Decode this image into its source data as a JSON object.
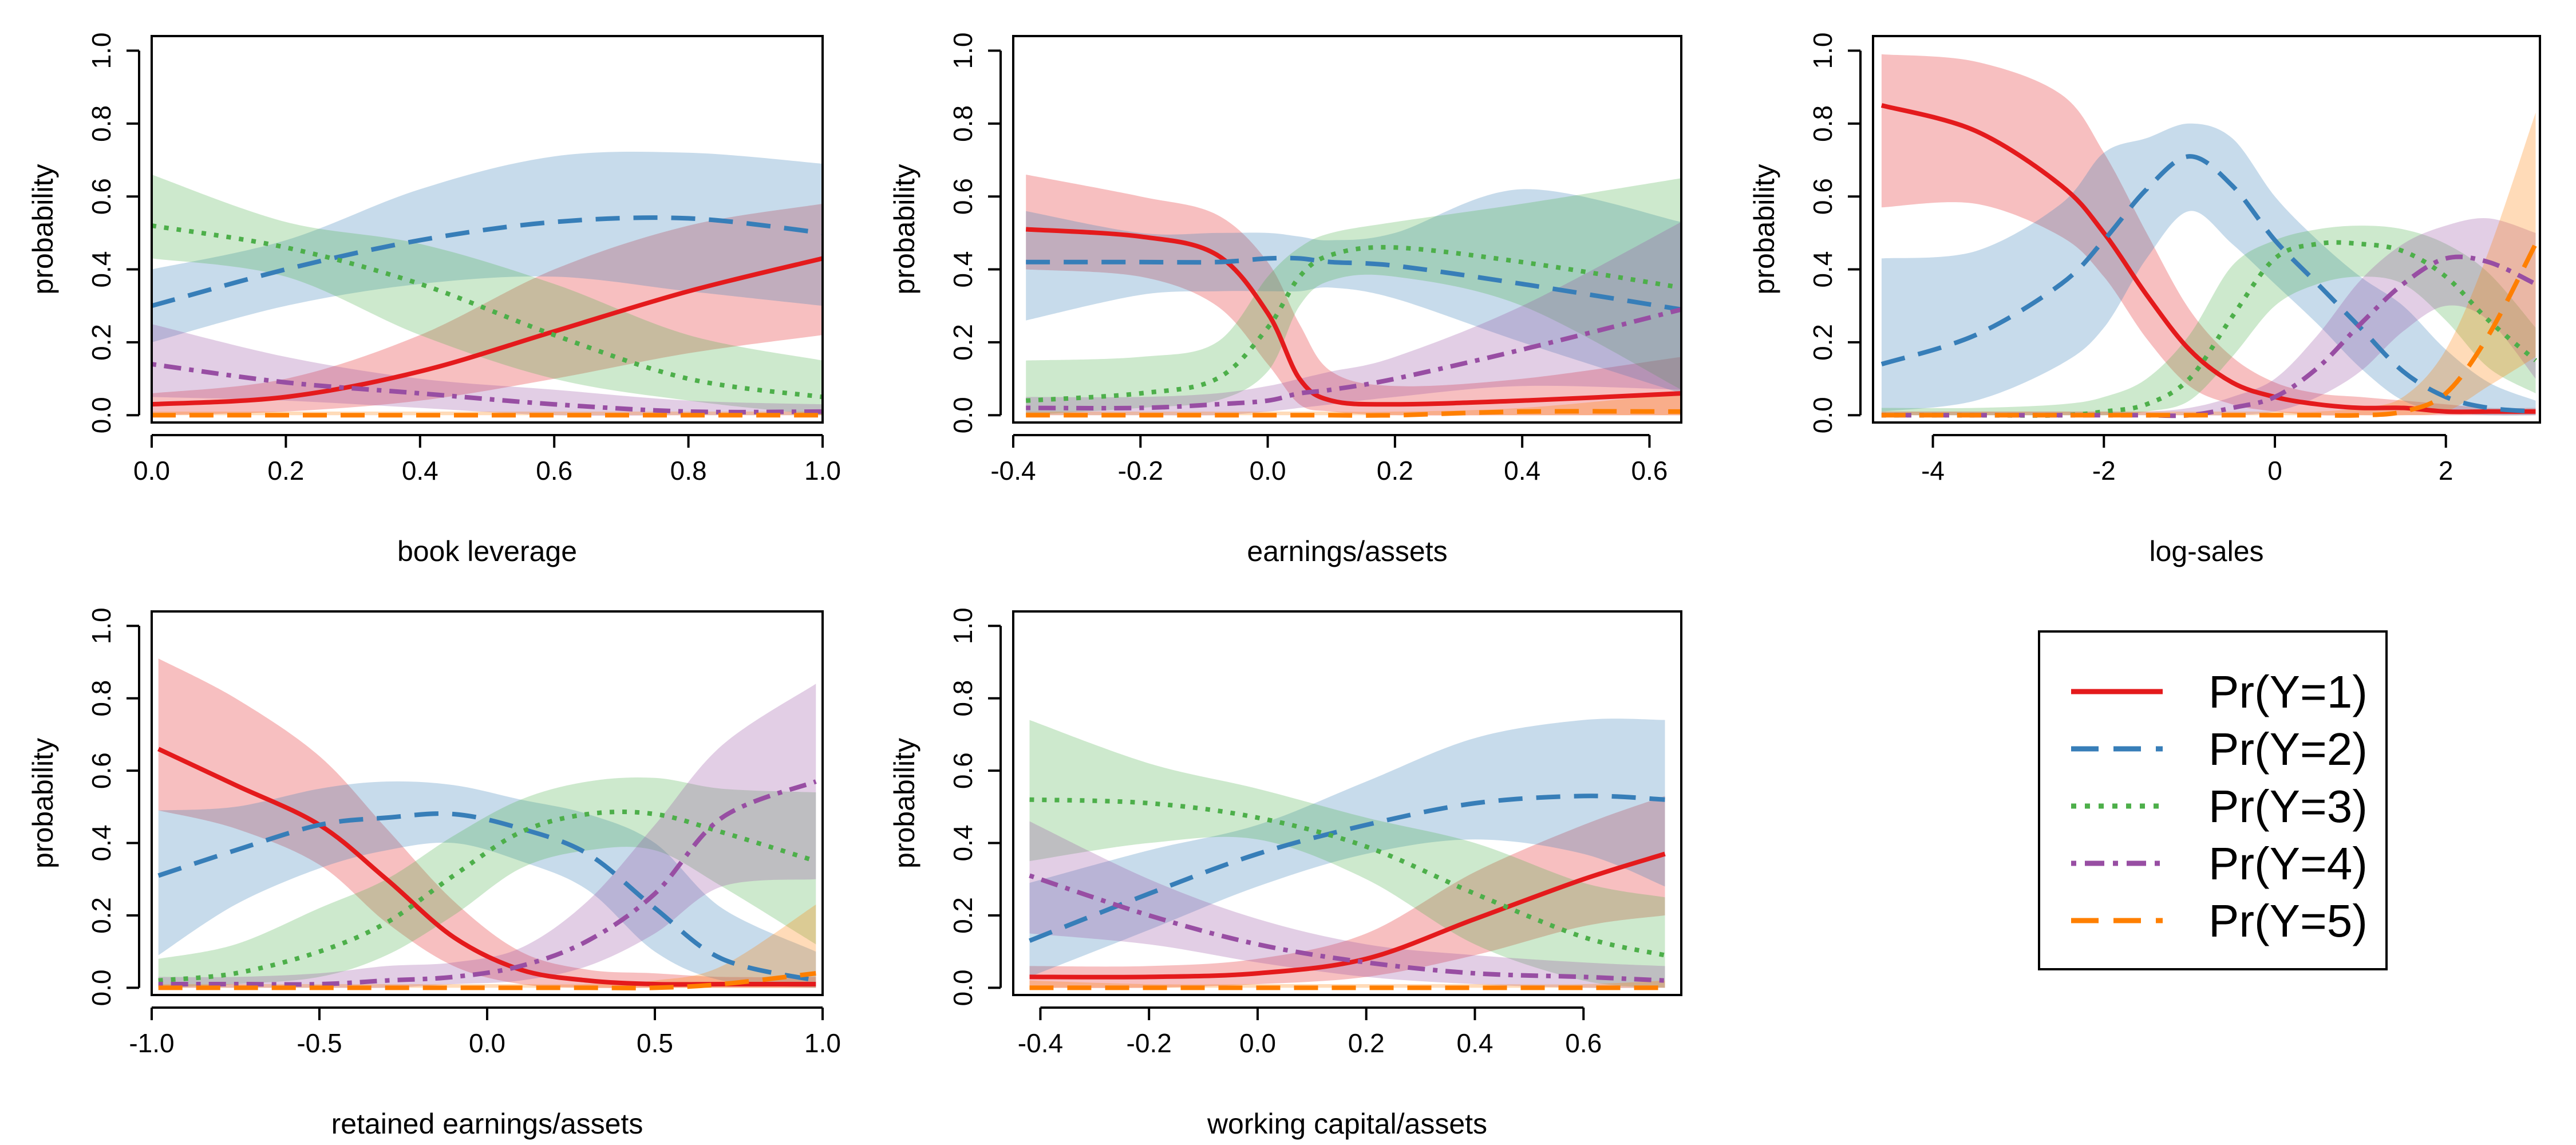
{
  "series_style": [
    {
      "name": "Pr(Y=1)",
      "color": "#E41A1C",
      "dash": "solid"
    },
    {
      "name": "Pr(Y=2)",
      "color": "#377EB8",
      "dash": "longdash"
    },
    {
      "name": "Pr(Y=3)",
      "color": "#4DAF4A",
      "dash": "dotted"
    },
    {
      "name": "Pr(Y=4)",
      "color": "#984EA3",
      "dash": "dotdash"
    },
    {
      "name": "Pr(Y=5)",
      "color": "#FF7F00",
      "dash": "longdash"
    }
  ],
  "legend": {
    "entries": [
      "Pr(Y=1)",
      "Pr(Y=2)",
      "Pr(Y=3)",
      "Pr(Y=4)",
      "Pr(Y=5)"
    ]
  },
  "chart_data": [
    {
      "type": "line",
      "xlabel": "book leverage",
      "ylabel": "probability",
      "xlim": [
        0.0,
        1.0
      ],
      "ylim": [
        0.0,
        1.0
      ],
      "xticks": [
        "0.0",
        "0.2",
        "0.4",
        "0.6",
        "0.8",
        "1.0"
      ],
      "yticks": [
        "0.0",
        "0.2",
        "0.4",
        "0.6",
        "0.8",
        "1.0"
      ],
      "x": [
        0.0,
        0.2,
        0.4,
        0.6,
        0.8,
        1.0
      ],
      "series": [
        {
          "name": "Pr(Y=1)",
          "values": [
            0.03,
            0.05,
            0.12,
            0.23,
            0.34,
            0.43
          ],
          "lower": [
            0.0,
            0.01,
            0.04,
            0.1,
            0.17,
            0.22
          ],
          "upper": [
            0.06,
            0.1,
            0.22,
            0.4,
            0.52,
            0.58
          ]
        },
        {
          "name": "Pr(Y=2)",
          "values": [
            0.3,
            0.4,
            0.48,
            0.53,
            0.54,
            0.5
          ],
          "lower": [
            0.2,
            0.3,
            0.36,
            0.38,
            0.34,
            0.3
          ],
          "upper": [
            0.4,
            0.48,
            0.62,
            0.71,
            0.72,
            0.69
          ]
        },
        {
          "name": "Pr(Y=3)",
          "values": [
            0.52,
            0.46,
            0.36,
            0.22,
            0.1,
            0.05
          ],
          "lower": [
            0.43,
            0.38,
            0.22,
            0.1,
            0.04,
            0.0
          ],
          "upper": [
            0.66,
            0.53,
            0.47,
            0.36,
            0.22,
            0.15
          ]
        },
        {
          "name": "Pr(Y=4)",
          "values": [
            0.14,
            0.09,
            0.06,
            0.03,
            0.01,
            0.01
          ],
          "lower": [
            0.05,
            0.04,
            0.02,
            0.0,
            0.0,
            0.0
          ],
          "upper": [
            0.25,
            0.16,
            0.1,
            0.07,
            0.04,
            0.03
          ]
        },
        {
          "name": "Pr(Y=5)",
          "values": [
            0.0,
            0.0,
            0.0,
            0.0,
            0.0,
            0.0
          ],
          "lower": [
            0.0,
            0.0,
            0.0,
            0.0,
            0.0,
            0.0
          ],
          "upper": [
            0.01,
            0.01,
            0.01,
            0.01,
            0.01,
            0.01
          ]
        }
      ]
    },
    {
      "type": "line",
      "xlabel": "earnings/assets",
      "ylabel": "probability",
      "xlim": [
        -0.4,
        0.65
      ],
      "ylim": [
        0.0,
        1.0
      ],
      "xticks": [
        "-0.4",
        "-0.2",
        "0.0",
        "0.2",
        "0.4",
        "0.6"
      ],
      "yticks": [
        "0.0",
        "0.2",
        "0.4",
        "0.6",
        "0.8",
        "1.0"
      ],
      "x": [
        -0.38,
        -0.2,
        -0.08,
        0.0,
        0.05,
        0.1,
        0.2,
        0.4,
        0.65
      ],
      "series": [
        {
          "name": "Pr(Y=1)",
          "values": [
            0.51,
            0.49,
            0.44,
            0.28,
            0.1,
            0.04,
            0.03,
            0.04,
            0.06
          ],
          "lower": [
            0.4,
            0.38,
            0.3,
            0.14,
            0.03,
            0.01,
            0.0,
            0.0,
            0.0
          ],
          "upper": [
            0.66,
            0.6,
            0.55,
            0.42,
            0.25,
            0.12,
            0.08,
            0.1,
            0.16
          ]
        },
        {
          "name": "Pr(Y=2)",
          "values": [
            0.42,
            0.42,
            0.42,
            0.43,
            0.43,
            0.42,
            0.41,
            0.36,
            0.29
          ],
          "lower": [
            0.26,
            0.33,
            0.34,
            0.34,
            0.34,
            0.35,
            0.32,
            0.2,
            0.06
          ],
          "upper": [
            0.56,
            0.5,
            0.5,
            0.5,
            0.49,
            0.48,
            0.5,
            0.62,
            0.53
          ]
        },
        {
          "name": "Pr(Y=3)",
          "values": [
            0.04,
            0.06,
            0.1,
            0.24,
            0.38,
            0.44,
            0.46,
            0.42,
            0.35
          ],
          "lower": [
            0.0,
            0.02,
            0.04,
            0.12,
            0.3,
            0.37,
            0.38,
            0.3,
            0.07
          ],
          "upper": [
            0.15,
            0.16,
            0.2,
            0.38,
            0.46,
            0.5,
            0.53,
            0.58,
            0.65
          ]
        },
        {
          "name": "Pr(Y=4)",
          "values": [
            0.02,
            0.02,
            0.03,
            0.04,
            0.06,
            0.07,
            0.1,
            0.18,
            0.29
          ],
          "lower": [
            0.0,
            0.0,
            0.0,
            0.01,
            0.02,
            0.03,
            0.05,
            0.08,
            0.07
          ],
          "upper": [
            0.05,
            0.05,
            0.06,
            0.08,
            0.1,
            0.12,
            0.16,
            0.3,
            0.53
          ]
        },
        {
          "name": "Pr(Y=5)",
          "values": [
            0.0,
            0.0,
            0.0,
            0.0,
            0.0,
            0.0,
            0.0,
            0.01,
            0.01
          ],
          "lower": [
            0.0,
            0.0,
            0.0,
            0.0,
            0.0,
            0.0,
            0.0,
            0.0,
            0.0
          ],
          "upper": [
            0.01,
            0.01,
            0.01,
            0.01,
            0.01,
            0.01,
            0.01,
            0.02,
            0.06
          ]
        }
      ]
    },
    {
      "type": "line",
      "xlabel": "log-sales",
      "ylabel": "probability",
      "xlim": [
        -4.7,
        3.1
      ],
      "ylim": [
        0.0,
        1.0
      ],
      "xticks": [
        "-4",
        "-2",
        "0",
        "2"
      ],
      "yticks": [
        "0.0",
        "0.2",
        "0.4",
        "0.6",
        "0.8",
        "1.0"
      ],
      "x": [
        -4.6,
        -3.5,
        -2.5,
        -2.0,
        -1.5,
        -1.0,
        -0.5,
        0.0,
        0.5,
        1.0,
        1.5,
        2.0,
        2.5,
        3.05
      ],
      "series": [
        {
          "name": "Pr(Y=1)",
          "values": [
            0.85,
            0.78,
            0.63,
            0.5,
            0.33,
            0.18,
            0.09,
            0.05,
            0.03,
            0.02,
            0.02,
            0.01,
            0.01,
            0.01
          ],
          "lower": [
            0.57,
            0.58,
            0.49,
            0.38,
            0.21,
            0.08,
            0.03,
            0.01,
            0.0,
            0.0,
            0.0,
            0.0,
            0.0,
            0.0
          ],
          "upper": [
            0.99,
            0.97,
            0.88,
            0.72,
            0.5,
            0.29,
            0.16,
            0.09,
            0.06,
            0.05,
            0.04,
            0.03,
            0.02,
            0.02
          ]
        },
        {
          "name": "Pr(Y=2)",
          "values": [
            0.14,
            0.22,
            0.36,
            0.48,
            0.62,
            0.71,
            0.63,
            0.48,
            0.36,
            0.24,
            0.12,
            0.05,
            0.02,
            0.01
          ],
          "lower": [
            0.01,
            0.04,
            0.14,
            0.24,
            0.43,
            0.56,
            0.47,
            0.36,
            0.25,
            0.13,
            0.04,
            0.01,
            0.0,
            0.0
          ],
          "upper": [
            0.43,
            0.45,
            0.58,
            0.72,
            0.76,
            0.8,
            0.76,
            0.6,
            0.48,
            0.38,
            0.3,
            0.18,
            0.09,
            0.04
          ]
        },
        {
          "name": "Pr(Y=3)",
          "values": [
            0.0,
            0.0,
            0.0,
            0.01,
            0.03,
            0.1,
            0.27,
            0.43,
            0.47,
            0.47,
            0.45,
            0.38,
            0.26,
            0.15
          ],
          "lower": [
            0.0,
            0.0,
            0.0,
            0.0,
            0.01,
            0.04,
            0.16,
            0.3,
            0.36,
            0.38,
            0.36,
            0.26,
            0.13,
            0.06
          ],
          "upper": [
            0.02,
            0.02,
            0.03,
            0.05,
            0.1,
            0.22,
            0.41,
            0.48,
            0.51,
            0.52,
            0.51,
            0.47,
            0.39,
            0.24
          ]
        },
        {
          "name": "Pr(Y=4)",
          "values": [
            0.0,
            0.0,
            0.0,
            0.0,
            0.0,
            0.0,
            0.02,
            0.05,
            0.13,
            0.25,
            0.36,
            0.43,
            0.42,
            0.36
          ],
          "lower": [
            0.0,
            0.0,
            0.0,
            0.0,
            0.0,
            0.0,
            0.0,
            0.01,
            0.05,
            0.12,
            0.23,
            0.3,
            0.26,
            0.1
          ],
          "upper": [
            0.01,
            0.01,
            0.01,
            0.01,
            0.01,
            0.02,
            0.05,
            0.1,
            0.22,
            0.37,
            0.47,
            0.52,
            0.54,
            0.5
          ]
        },
        {
          "name": "Pr(Y=5)",
          "values": [
            0.0,
            0.0,
            0.0,
            0.0,
            0.0,
            0.0,
            0.0,
            0.0,
            0.0,
            0.0,
            0.01,
            0.06,
            0.22,
            0.47
          ],
          "lower": [
            0.0,
            0.0,
            0.0,
            0.0,
            0.0,
            0.0,
            0.0,
            0.0,
            0.0,
            0.0,
            0.0,
            0.01,
            0.08,
            0.16
          ],
          "upper": [
            0.01,
            0.01,
            0.01,
            0.01,
            0.01,
            0.01,
            0.01,
            0.01,
            0.01,
            0.02,
            0.05,
            0.18,
            0.45,
            0.83
          ]
        }
      ]
    },
    {
      "type": "line",
      "xlabel": "retained earnings/assets",
      "ylabel": "probability",
      "xlim": [
        -1.0,
        1.0
      ],
      "ylim": [
        0.0,
        1.0
      ],
      "xticks": [
        "-1.0",
        "-0.5",
        "0.0",
        "0.5",
        "1.0"
      ],
      "yticks": [
        "0.0",
        "0.2",
        "0.4",
        "0.6",
        "0.8",
        "1.0"
      ],
      "x": [
        -0.98,
        -0.75,
        -0.5,
        -0.3,
        -0.1,
        0.1,
        0.3,
        0.5,
        0.7,
        0.98
      ],
      "series": [
        {
          "name": "Pr(Y=1)",
          "values": [
            0.66,
            0.56,
            0.45,
            0.3,
            0.14,
            0.05,
            0.02,
            0.01,
            0.01,
            0.01
          ],
          "lower": [
            0.49,
            0.44,
            0.34,
            0.18,
            0.06,
            0.01,
            0.0,
            0.0,
            0.0,
            0.0
          ],
          "upper": [
            0.91,
            0.8,
            0.64,
            0.44,
            0.24,
            0.1,
            0.05,
            0.04,
            0.03,
            0.03
          ]
        },
        {
          "name": "Pr(Y=2)",
          "values": [
            0.31,
            0.38,
            0.45,
            0.47,
            0.48,
            0.44,
            0.37,
            0.22,
            0.08,
            0.02
          ],
          "lower": [
            0.09,
            0.23,
            0.33,
            0.38,
            0.4,
            0.35,
            0.27,
            0.1,
            0.02,
            0.0
          ],
          "upper": [
            0.49,
            0.5,
            0.55,
            0.57,
            0.56,
            0.52,
            0.48,
            0.4,
            0.22,
            0.1
          ]
        },
        {
          "name": "Pr(Y=3)",
          "values": [
            0.02,
            0.04,
            0.1,
            0.18,
            0.31,
            0.43,
            0.48,
            0.48,
            0.43,
            0.35
          ],
          "lower": [
            0.0,
            0.01,
            0.03,
            0.09,
            0.2,
            0.33,
            0.38,
            0.38,
            0.28,
            0.12
          ],
          "upper": [
            0.08,
            0.12,
            0.22,
            0.3,
            0.42,
            0.52,
            0.57,
            0.58,
            0.55,
            0.54
          ]
        },
        {
          "name": "Pr(Y=4)",
          "values": [
            0.01,
            0.01,
            0.01,
            0.02,
            0.03,
            0.06,
            0.13,
            0.26,
            0.47,
            0.57
          ],
          "lower": [
            0.0,
            0.0,
            0.0,
            0.0,
            0.01,
            0.02,
            0.06,
            0.15,
            0.28,
            0.3
          ],
          "upper": [
            0.03,
            0.03,
            0.04,
            0.06,
            0.07,
            0.11,
            0.24,
            0.45,
            0.67,
            0.84
          ]
        },
        {
          "name": "Pr(Y=5)",
          "values": [
            0.0,
            0.0,
            0.0,
            0.0,
            0.0,
            0.0,
            0.0,
            0.0,
            0.01,
            0.04
          ],
          "lower": [
            0.0,
            0.0,
            0.0,
            0.0,
            0.0,
            0.0,
            0.0,
            0.0,
            0.0,
            0.0
          ],
          "upper": [
            0.01,
            0.01,
            0.01,
            0.01,
            0.01,
            0.01,
            0.01,
            0.02,
            0.06,
            0.23
          ]
        }
      ]
    },
    {
      "type": "line",
      "xlabel": "working capital/assets",
      "ylabel": "probability",
      "xlim": [
        -0.45,
        0.78
      ],
      "ylim": [
        0.0,
        1.0
      ],
      "xticks": [
        "-0.4",
        "-0.2",
        "0.0",
        "0.2",
        "0.4",
        "0.6"
      ],
      "yticks": [
        "0.0",
        "0.2",
        "0.4",
        "0.6",
        "0.8",
        "1.0"
      ],
      "x": [
        -0.42,
        -0.2,
        0.0,
        0.2,
        0.4,
        0.6,
        0.75
      ],
      "series": [
        {
          "name": "Pr(Y=1)",
          "values": [
            0.03,
            0.03,
            0.04,
            0.08,
            0.19,
            0.3,
            0.37
          ],
          "lower": [
            0.0,
            0.0,
            0.01,
            0.03,
            0.09,
            0.17,
            0.2
          ],
          "upper": [
            0.06,
            0.06,
            0.08,
            0.15,
            0.32,
            0.45,
            0.53
          ]
        },
        {
          "name": "Pr(Y=2)",
          "values": [
            0.13,
            0.26,
            0.37,
            0.45,
            0.51,
            0.53,
            0.52
          ],
          "lower": [
            0.03,
            0.16,
            0.28,
            0.37,
            0.41,
            0.37,
            0.28
          ],
          "upper": [
            0.29,
            0.38,
            0.45,
            0.57,
            0.69,
            0.74,
            0.74
          ]
        },
        {
          "name": "Pr(Y=3)",
          "values": [
            0.52,
            0.51,
            0.47,
            0.39,
            0.26,
            0.14,
            0.09
          ],
          "lower": [
            0.35,
            0.4,
            0.41,
            0.3,
            0.12,
            0.02,
            0.0
          ],
          "upper": [
            0.74,
            0.62,
            0.55,
            0.47,
            0.4,
            0.29,
            0.25
          ]
        },
        {
          "name": "Pr(Y=4)",
          "values": [
            0.31,
            0.2,
            0.12,
            0.07,
            0.04,
            0.03,
            0.02
          ],
          "lower": [
            0.15,
            0.12,
            0.07,
            0.03,
            0.01,
            0.0,
            0.0
          ],
          "upper": [
            0.46,
            0.3,
            0.19,
            0.12,
            0.09,
            0.07,
            0.06
          ]
        },
        {
          "name": "Pr(Y=5)",
          "values": [
            0.0,
            0.0,
            0.0,
            0.0,
            0.0,
            0.0,
            0.0
          ],
          "lower": [
            0.0,
            0.0,
            0.0,
            0.0,
            0.0,
            0.0,
            0.0
          ],
          "upper": [
            0.02,
            0.01,
            0.01,
            0.01,
            0.01,
            0.01,
            0.02
          ]
        }
      ]
    }
  ]
}
